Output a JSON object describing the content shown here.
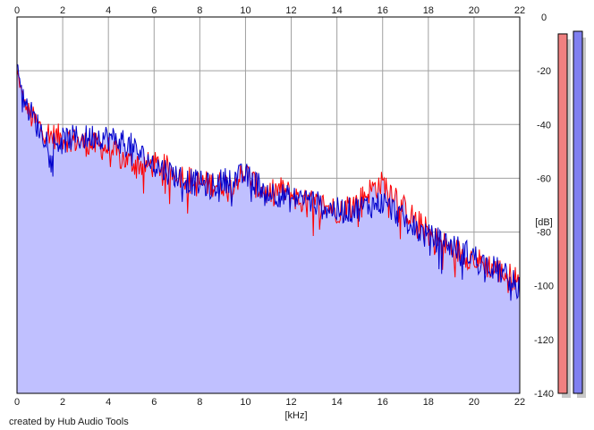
{
  "credit_text": "created by Hub Audio Tools",
  "chart_data": {
    "type": "area",
    "xlabel": "[kHz]",
    "ylabel": "[dB]",
    "xlim": [
      0,
      22
    ],
    "ylim": [
      -140,
      0
    ],
    "x_ticks": [
      "0",
      "2",
      "4",
      "6",
      "8",
      "10",
      "12",
      "14",
      "16",
      "18",
      "20",
      "22"
    ],
    "y_ticks": [
      "0",
      "-20",
      "-40",
      "-60",
      "-80",
      "-100",
      "-120",
      "-140"
    ],
    "grid": true,
    "x_unit": "kHz",
    "y_unit": "dB",
    "fill_color": "#c0c0ff",
    "series": [
      {
        "color": "#ff0000",
        "x": [
          0,
          0.2,
          0.5,
          1,
          1.5,
          2,
          2.5,
          3,
          3.5,
          4,
          4.5,
          5,
          5.5,
          6,
          6.5,
          7,
          7.5,
          8,
          8.5,
          9,
          9.5,
          10,
          10.5,
          11,
          11.5,
          12,
          12.5,
          13,
          13.5,
          14,
          14.5,
          15,
          15.5,
          16,
          16.5,
          17,
          17.5,
          18,
          18.5,
          19,
          19.5,
          20,
          20.5,
          21,
          21.5,
          22
        ],
        "y": [
          -20,
          -28,
          -36,
          -41,
          -44,
          -45,
          -46,
          -47,
          -48,
          -49,
          -52,
          -54,
          -55,
          -55,
          -56,
          -58,
          -60,
          -62,
          -62,
          -62,
          -61,
          -58,
          -63,
          -66,
          -64,
          -66,
          -69,
          -69,
          -70,
          -72,
          -70,
          -68,
          -64,
          -62,
          -65,
          -72,
          -76,
          -80,
          -84,
          -86,
          -88,
          -90,
          -92,
          -94,
          -96,
          -98
        ]
      },
      {
        "color": "#0000cc",
        "x": [
          0,
          0.2,
          0.5,
          1,
          1.5,
          2,
          2.5,
          3,
          3.5,
          4,
          4.5,
          5,
          5.5,
          6,
          6.5,
          7,
          7.5,
          8,
          8.5,
          9,
          9.5,
          10,
          10.5,
          11,
          11.5,
          12,
          12.5,
          13,
          13.5,
          14,
          14.5,
          15,
          15.5,
          16,
          16.5,
          17,
          17.5,
          18,
          18.5,
          19,
          19.5,
          20,
          20.5,
          21,
          21.5,
          22
        ],
        "y": [
          -18,
          -26,
          -34,
          -42,
          -47,
          -46,
          -45,
          -45,
          -44,
          -45,
          -46,
          -48,
          -52,
          -55,
          -57,
          -59,
          -61,
          -62,
          -63,
          -61,
          -60,
          -59,
          -62,
          -65,
          -66,
          -68,
          -67,
          -69,
          -71,
          -72,
          -72,
          -71,
          -70,
          -69,
          -72,
          -76,
          -79,
          -82,
          -83,
          -85,
          -87,
          -89,
          -92,
          -94,
          -97,
          -101
        ]
      }
    ]
  },
  "meter": {
    "left_color": "#f08080",
    "right_color": "#8080f0",
    "left_level": 0.955,
    "right_level": 0.962
  }
}
